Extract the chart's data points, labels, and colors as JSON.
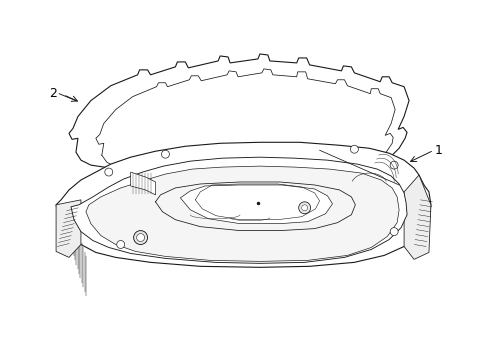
{
  "background_color": "#ffffff",
  "line_color": "#1a1a1a",
  "label_color": "#000000",
  "part1_label": "1",
  "part2_label": "2",
  "figsize": [
    4.89,
    3.6
  ],
  "dpi": 100
}
